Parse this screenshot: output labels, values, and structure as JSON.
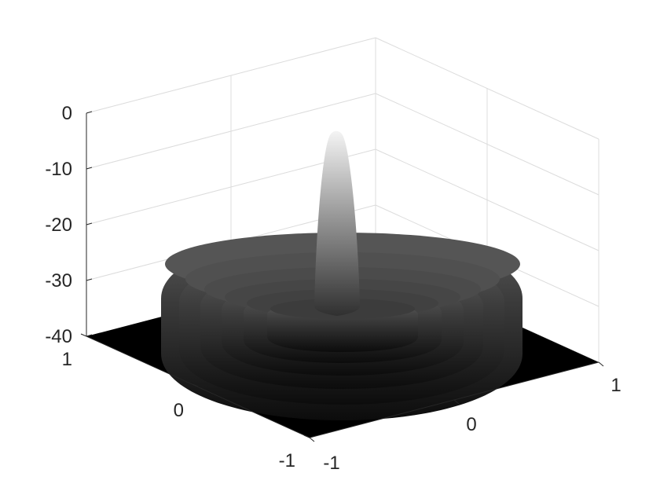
{
  "chart_data": {
    "type": "surface",
    "title": "",
    "xlabel": "",
    "ylabel": "",
    "zlabel": "",
    "xlim": [
      -1,
      1
    ],
    "ylim": [
      -1,
      1
    ],
    "zlim": [
      -40,
      0
    ],
    "x_ticks": [
      "-1",
      "0",
      "1"
    ],
    "y_ticks": [
      "-1",
      "0",
      "1"
    ],
    "z_ticks": [
      "-40",
      "-30",
      "-20",
      "-10",
      "0"
    ],
    "grid": true,
    "colormap": "gray",
    "domain": "disk of radius 1 (value -40 outside)",
    "peak_value": 0,
    "radial_profile": {
      "r": [
        0,
        0.05,
        0.1,
        0.15,
        0.2,
        0.25,
        0.3,
        0.35,
        0.4,
        0.45,
        0.5,
        0.55,
        0.6,
        0.65,
        0.7,
        0.75,
        0.8,
        0.85,
        0.9,
        0.95,
        1.0
      ],
      "value": [
        0,
        -3,
        -12,
        -25,
        -28,
        -29,
        -23,
        -26,
        -24,
        -25,
        -22,
        -23,
        -21,
        -22,
        -20,
        -21,
        -19,
        -20,
        -18,
        -18,
        -18
      ]
    }
  },
  "colors": {
    "axis": "#262626",
    "grid": "#dcdcdc",
    "floor": "#000000",
    "peak": "#f2f2f2"
  }
}
